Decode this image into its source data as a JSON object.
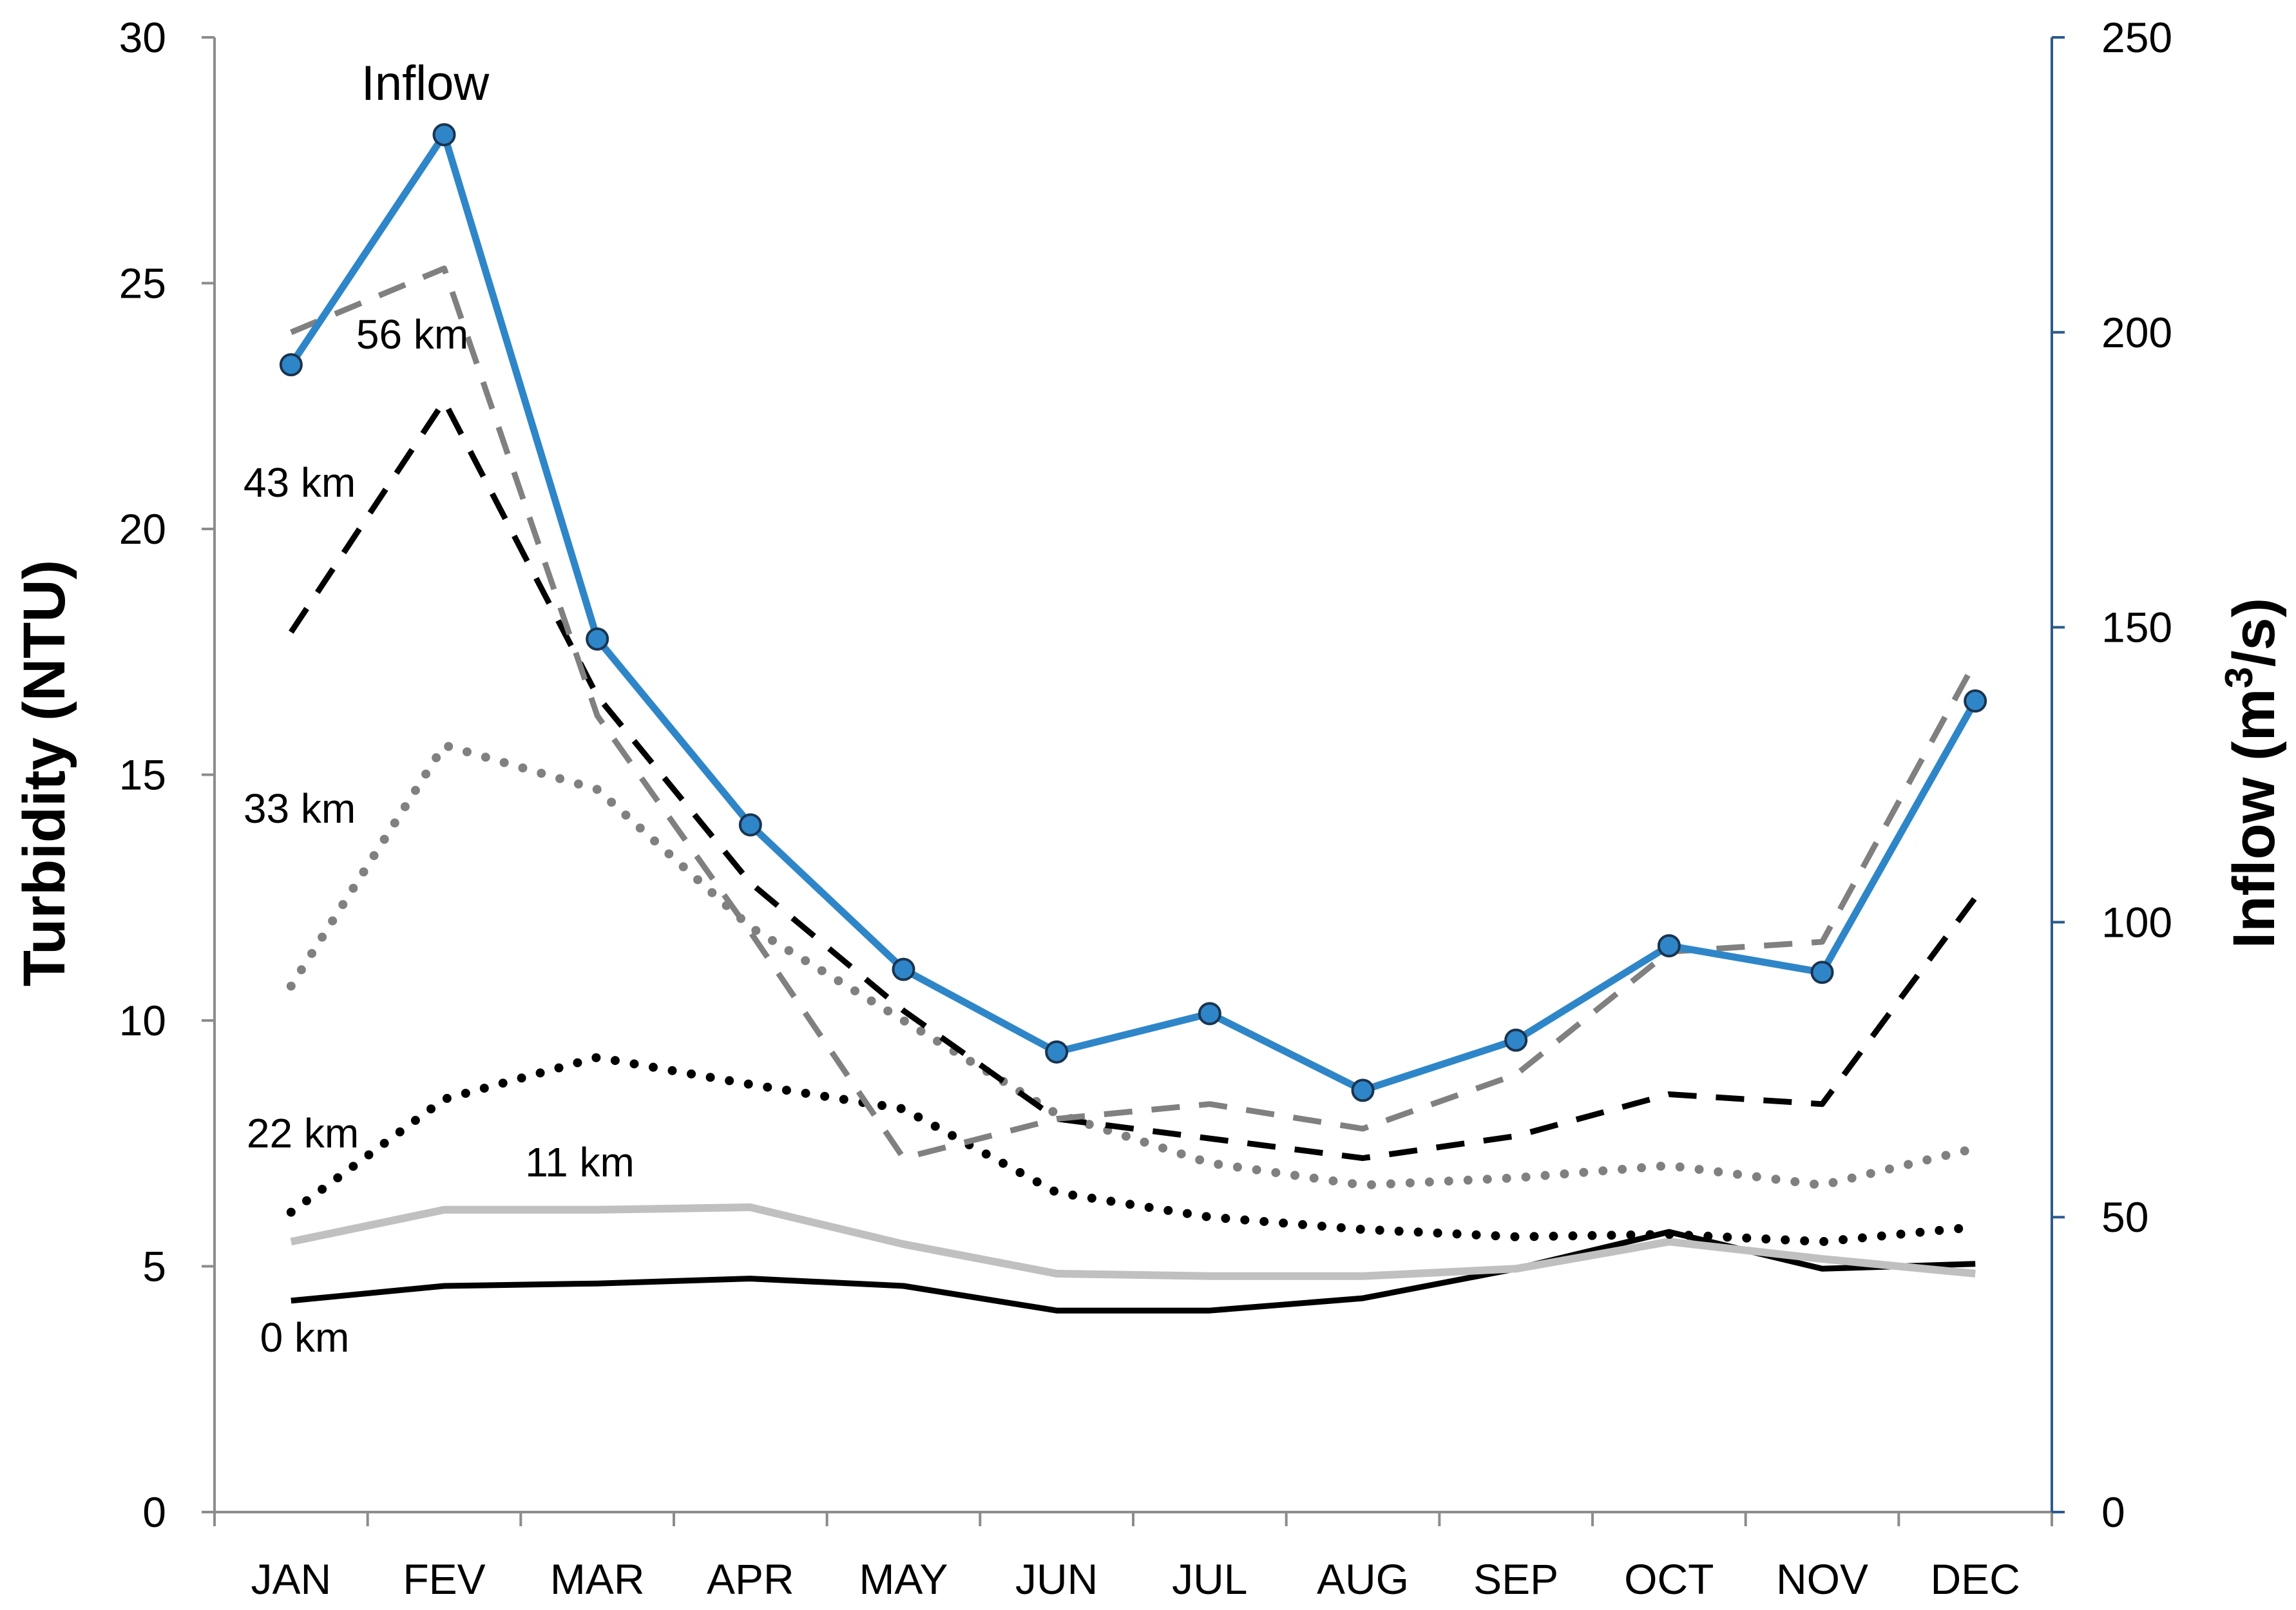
{
  "chart_data": {
    "type": "line",
    "categories": [
      "JAN",
      "FEV",
      "MAR",
      "APR",
      "MAY",
      "JUN",
      "JUL",
      "AUG",
      "SEP",
      "OCT",
      "NOV",
      "DEC"
    ],
    "ylabel": "Turbidity (NTU)",
    "y2label_main": "Inflow (m",
    "y2label_sup": "3",
    "y2label_end": "/s)",
    "ylim": [
      0,
      30
    ],
    "y2lim": [
      0,
      250
    ],
    "yticks": [
      "0",
      "5",
      "10",
      "15",
      "20",
      "25",
      "30"
    ],
    "y2ticks": [
      "0",
      "50",
      "100",
      "150",
      "200",
      "250"
    ],
    "grid": false,
    "series": [
      {
        "name": "0 km",
        "label": "0 km",
        "axis": "left",
        "style": "solid",
        "color": "#000000",
        "values": [
          4.3,
          4.6,
          4.65,
          4.75,
          4.6,
          4.1,
          4.1,
          4.35,
          4.95,
          5.7,
          4.95,
          5.05
        ]
      },
      {
        "name": "11 km",
        "label": "11 km",
        "axis": "left",
        "style": "solid",
        "color": "#c0c0c0",
        "values": [
          5.5,
          6.15,
          6.15,
          6.2,
          5.45,
          4.85,
          4.8,
          4.8,
          4.95,
          5.5,
          5.15,
          4.85
        ]
      },
      {
        "name": "22 km",
        "label": "22 km",
        "axis": "left",
        "style": "dotted",
        "color": "#000000",
        "values": [
          6.1,
          8.4,
          9.25,
          8.7,
          8.2,
          6.5,
          6.0,
          5.75,
          5.6,
          5.65,
          5.5,
          5.8
        ]
      },
      {
        "name": "33 km",
        "label": "33 km",
        "axis": "left",
        "style": "dotted",
        "color": "#808080",
        "values": [
          10.7,
          15.6,
          14.7,
          11.9,
          10.0,
          8.1,
          7.1,
          6.65,
          6.8,
          7.05,
          6.65,
          7.4
        ]
      },
      {
        "name": "43 km",
        "label": "43 km",
        "axis": "left",
        "style": "dashed",
        "color": "#000000",
        "values": [
          17.9,
          22.6,
          16.6,
          12.8,
          10.2,
          8.0,
          7.6,
          7.2,
          7.65,
          8.5,
          8.3,
          12.5
        ]
      },
      {
        "name": "56 km",
        "label": "56 km",
        "axis": "left",
        "style": "dashed",
        "color": "#808080",
        "values": [
          24.0,
          25.3,
          16.2,
          11.8,
          7.2,
          8.0,
          8.3,
          7.8,
          8.9,
          11.4,
          11.6,
          17.3
        ]
      },
      {
        "name": "Inflow",
        "label": "Inflow",
        "axis": "right",
        "style": "solid-markers",
        "color": "#2e86c8",
        "values": [
          194.5,
          233.5,
          148,
          116.5,
          92,
          78,
          84.5,
          71.5,
          80,
          96,
          91.5,
          137.5
        ]
      }
    ]
  }
}
